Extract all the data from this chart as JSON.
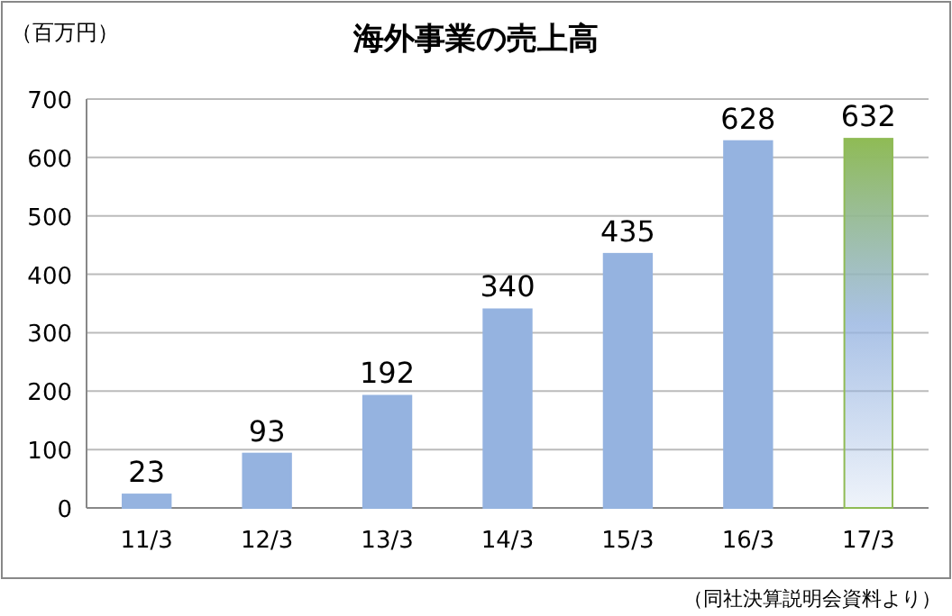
{
  "chart_data": {
    "type": "bar",
    "title": "海外事業の売上高",
    "ylabel": "（百万円）",
    "annotations": [
      "（同社決算説明会資料より）"
    ],
    "categories": [
      "11/3",
      "12/3",
      "13/3",
      "14/3",
      "15/3",
      "16/3",
      "17/3"
    ],
    "values": [
      23,
      93,
      192,
      340,
      435,
      628,
      632
    ],
    "colors": [
      "#95b3e0",
      "#95b3e0",
      "#95b3e0",
      "#95b3e0",
      "#95b3e0",
      "#95b3e0",
      "#8fbb55"
    ],
    "ylim": [
      0,
      700
    ],
    "yticks": [
      0,
      100,
      200,
      300,
      400,
      500,
      600,
      700
    ],
    "grid": "y",
    "data_labels": true
  }
}
